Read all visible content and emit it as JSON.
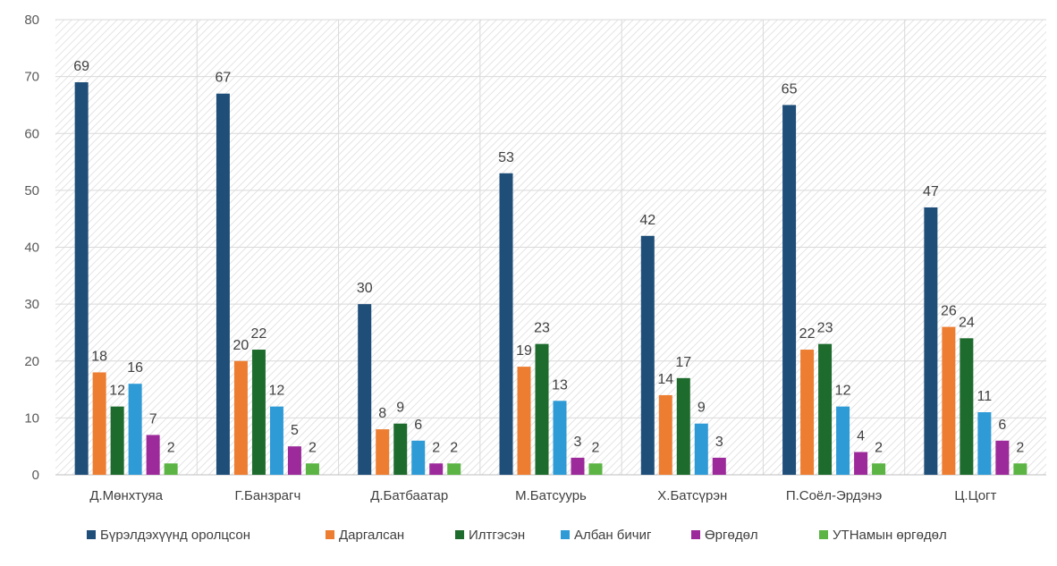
{
  "chart_data": {
    "type": "bar",
    "title": "",
    "xlabel": "",
    "ylabel": "",
    "ylim": [
      0,
      80
    ],
    "yticks": [
      0,
      10,
      20,
      30,
      40,
      50,
      60,
      70,
      80
    ],
    "grid": true,
    "legend_position": "bottom",
    "categories": [
      "Д.Мөнхтуяа",
      "Г.Банзрагч",
      "Д.Батбаатар",
      "М.Батсуурь",
      "Х.Батсүрэн",
      "П.Соёл-Эрдэнэ",
      "Ц.Цогт"
    ],
    "series": [
      {
        "name": "Бүрэлдэхүүнд оролцсон",
        "color": "#1f4e79",
        "values": [
          69,
          67,
          30,
          53,
          42,
          65,
          47
        ],
        "labels": [
          "69",
          "67",
          "30",
          "53",
          "42",
          "65",
          "47"
        ]
      },
      {
        "name": "Даргалсан",
        "color": "#ed7d31",
        "values": [
          18,
          20,
          8,
          19,
          14,
          22,
          26
        ],
        "labels": [
          "18",
          "20",
          "8",
          "19",
          "14",
          "22",
          "26"
        ]
      },
      {
        "name": "Илтгэсэн",
        "color": "#1e6b2e",
        "values": [
          12,
          22,
          9,
          23,
          17,
          23,
          24
        ],
        "labels": [
          "12",
          "22",
          "9",
          "23",
          "17",
          "23",
          "24"
        ]
      },
      {
        "name": "Албан бичиг",
        "color": "#2e9bd6",
        "values": [
          16,
          12,
          6,
          13,
          9,
          12,
          11
        ],
        "labels": [
          "16",
          "12",
          "6",
          "13",
          "9",
          "12",
          "11"
        ]
      },
      {
        "name": "Өргөдөл",
        "color": "#9c2a9a",
        "values": [
          7,
          5,
          2,
          3,
          3,
          4,
          6
        ],
        "labels": [
          "7",
          "5",
          "2",
          "3",
          "3",
          "4",
          "6"
        ]
      },
      {
        "name": "УТНамын өргөдөл",
        "color": "#5bb443",
        "values": [
          2,
          2,
          2,
          2,
          0,
          2,
          2
        ],
        "labels": [
          "2",
          "2",
          "2",
          "2",
          "",
          "2",
          "2"
        ]
      }
    ]
  }
}
